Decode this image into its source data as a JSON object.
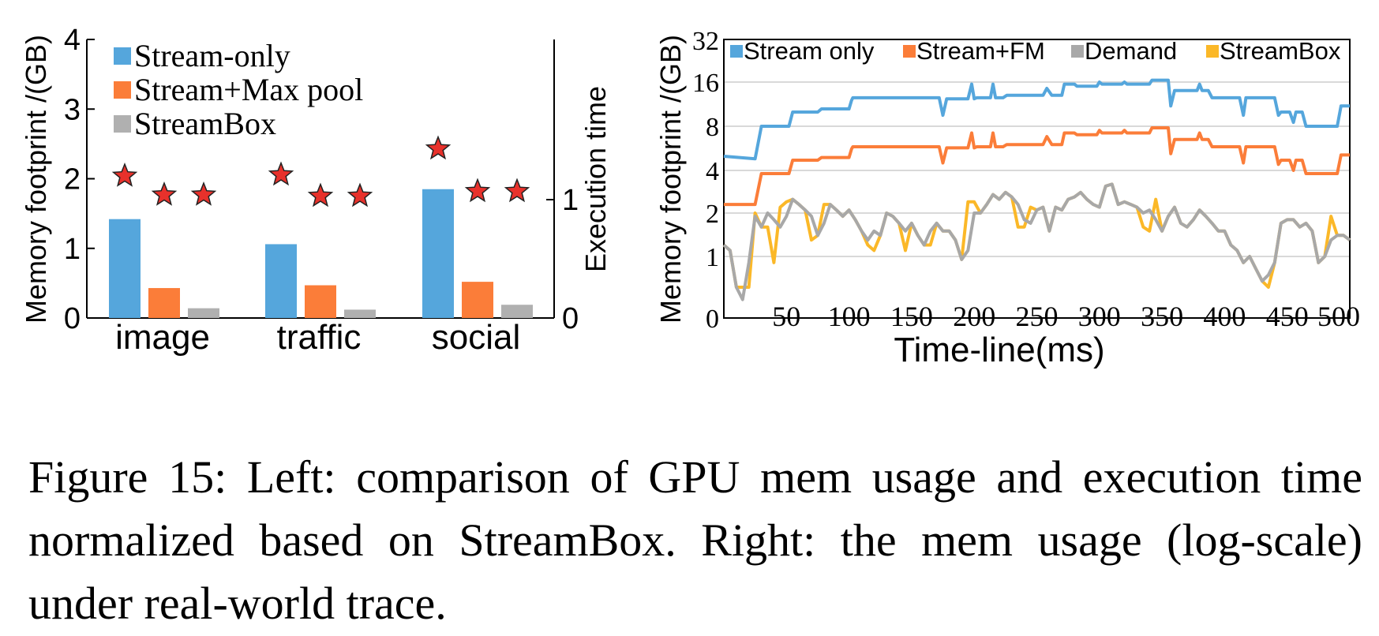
{
  "caption": "Figure 15: Left: comparison of GPU mem usage and execution time normalized based on StreamBox. Right: the mem usage (log-scale) under real-world trace.",
  "chart_data": [
    {
      "type": "bar",
      "categories": [
        "image",
        "traffic",
        "social"
      ],
      "ylabel": "Memory footprint /(GB)",
      "ylim": [
        0,
        4
      ],
      "yticks": [
        "0",
        "1",
        "2",
        "3",
        "4"
      ],
      "y2label": "Execution time",
      "y2ticks": [
        "0",
        "1"
      ],
      "legend_position": "top-left",
      "series": [
        {
          "name": "Stream-only",
          "color": "#55a6dc",
          "values": [
            1.42,
            1.06,
            1.85
          ]
        },
        {
          "name": "Stream+Max pool",
          "color": "#fb7d39",
          "values": [
            0.43,
            0.47,
            0.52
          ]
        },
        {
          "name": "StreamBox",
          "color": "#b0b0b0",
          "values": [
            0.14,
            0.12,
            0.19
          ]
        }
      ],
      "execution_time": [
        [
          1.2,
          1.04,
          1.04
        ],
        [
          1.21,
          1.03,
          1.03
        ],
        [
          1.43,
          1.07,
          1.07
        ]
      ]
    },
    {
      "type": "line",
      "xlabel": "Time-line(ms)",
      "ylabel": "Memory footprint /(GB)",
      "xlim": [
        0,
        500
      ],
      "xticks": [
        "50",
        "100",
        "150",
        "200",
        "250",
        "300",
        "350",
        "400",
        "450",
        "500"
      ],
      "yscale": "log2",
      "yticks": [
        "0",
        "1",
        "2",
        "4",
        "8",
        "16",
        "32"
      ],
      "grid": true,
      "legend_position": "top",
      "series": [
        {
          "name": "Stream only",
          "color": "#55a6dc",
          "x": [
            0,
            25,
            30,
            52,
            55,
            75,
            78,
            100,
            102,
            103,
            130,
            172,
            175,
            178,
            195,
            198,
            200,
            202,
            213,
            215,
            217,
            223,
            226,
            229,
            240,
            255,
            258,
            262,
            270,
            272,
            280,
            282,
            298,
            300,
            302,
            318,
            320,
            322,
            340,
            342,
            355,
            357,
            360,
            365,
            378,
            380,
            382,
            387,
            390,
            412,
            415,
            417,
            440,
            443,
            445,
            452,
            455,
            457,
            462,
            465,
            480,
            490,
            493,
            500
          ],
          "y": [
            5,
            4.8,
            8,
            8,
            10,
            10,
            10.5,
            10.5,
            12,
            12.5,
            12.5,
            12.5,
            9.5,
            12.3,
            12.3,
            15.5,
            12.3,
            12.5,
            12.5,
            15.5,
            12.5,
            12.5,
            13,
            13,
            13,
            13,
            14.5,
            13,
            13,
            15.5,
            15.5,
            15,
            15,
            16,
            15.5,
            15.5,
            16,
            15.5,
            15.5,
            16.5,
            16.5,
            11,
            14,
            14,
            14,
            15.5,
            14,
            14,
            12.5,
            12.5,
            9.5,
            12.5,
            12.5,
            9.5,
            10,
            10,
            8.5,
            10,
            10,
            8,
            8,
            8,
            11,
            11
          ]
        },
        {
          "name": "Stream+FM",
          "color": "#fb7d39",
          "x": [
            0,
            25,
            30,
            52,
            55,
            75,
            78,
            100,
            102,
            103,
            130,
            172,
            175,
            178,
            195,
            198,
            200,
            202,
            213,
            215,
            217,
            223,
            226,
            229,
            240,
            255,
            258,
            262,
            270,
            272,
            280,
            282,
            298,
            300,
            302,
            318,
            320,
            322,
            340,
            342,
            355,
            357,
            360,
            365,
            378,
            380,
            382,
            387,
            390,
            412,
            415,
            417,
            440,
            443,
            445,
            452,
            455,
            457,
            462,
            465,
            480,
            490,
            493,
            500
          ],
          "y": [
            2.3,
            2.3,
            3.8,
            3.8,
            4.7,
            4.7,
            4.9,
            4.9,
            5.6,
            5.8,
            5.8,
            5.8,
            4.5,
            5.7,
            5.7,
            7.2,
            5.7,
            5.8,
            5.8,
            7.2,
            5.8,
            5.8,
            6,
            6,
            6,
            6,
            6.8,
            6,
            6,
            7.2,
            7.2,
            7,
            7,
            7.5,
            7.2,
            7.2,
            7.5,
            7.2,
            7.2,
            7.8,
            7.8,
            5.2,
            6.5,
            6.5,
            6.5,
            7.2,
            6.5,
            6.5,
            5.8,
            5.8,
            4.5,
            5.8,
            5.8,
            4.4,
            4.7,
            4.7,
            4,
            4.7,
            4.7,
            3.8,
            3.8,
            3.8,
            5.1,
            5.1
          ]
        },
        {
          "name": "Demand",
          "color": "#a8a8a8",
          "x": [
            0,
            5,
            10,
            15,
            20,
            25,
            30,
            35,
            40,
            45,
            50,
            55,
            60,
            65,
            70,
            75,
            80,
            85,
            90,
            95,
            100,
            105,
            110,
            115,
            120,
            125,
            130,
            135,
            140,
            145,
            150,
            155,
            160,
            165,
            170,
            175,
            180,
            185,
            190,
            195,
            200,
            205,
            210,
            215,
            220,
            225,
            230,
            235,
            240,
            245,
            250,
            255,
            260,
            265,
            270,
            275,
            280,
            285,
            290,
            295,
            300,
            305,
            310,
            315,
            320,
            325,
            330,
            335,
            340,
            345,
            350,
            355,
            360,
            365,
            370,
            375,
            380,
            385,
            390,
            395,
            400,
            405,
            410,
            415,
            420,
            425,
            430,
            435,
            440,
            445,
            450,
            455,
            460,
            465,
            470,
            475,
            480,
            485,
            490,
            495,
            500
          ],
          "y": [
            1.2,
            1.1,
            0.5,
            0.3,
            0.9,
            1.9,
            1.6,
            2,
            1.8,
            1.6,
            1.9,
            2.5,
            2.3,
            2.1,
            1.9,
            1.4,
            1.7,
            2.3,
            2.1,
            1.9,
            2.1,
            1.8,
            1.5,
            1.3,
            1.5,
            1.4,
            2,
            1.9,
            1.7,
            1.5,
            1.7,
            1.4,
            1.2,
            1.5,
            1.7,
            1.5,
            1.5,
            1.3,
            0.95,
            1.1,
            2,
            2,
            2.3,
            2.7,
            2.5,
            2.8,
            2.6,
            2.3,
            1.8,
            1.7,
            2.1,
            2.2,
            1.5,
            2.2,
            2.1,
            2.5,
            2.6,
            2.8,
            2.5,
            2.3,
            2.2,
            3.1,
            3.2,
            2.3,
            2.4,
            2.3,
            2.2,
            2,
            2.1,
            1.8,
            1.5,
            1.9,
            2.2,
            1.7,
            1.6,
            1.8,
            2.1,
            1.9,
            1.7,
            1.5,
            1.5,
            1.2,
            1.1,
            0.9,
            1,
            0.8,
            0.6,
            0.7,
            0.9,
            1.7,
            1.8,
            1.8,
            1.6,
            1.7,
            1.5,
            0.9,
            1,
            1.3,
            1.4,
            1.4,
            1.3
          ]
        },
        {
          "name": "StreamBox",
          "color": "#fbb828",
          "x": [
            0,
            5,
            10,
            15,
            20,
            25,
            30,
            35,
            40,
            45,
            50,
            55,
            60,
            65,
            70,
            75,
            80,
            85,
            90,
            95,
            100,
            105,
            110,
            115,
            120,
            125,
            130,
            135,
            140,
            145,
            150,
            155,
            160,
            165,
            170,
            175,
            180,
            185,
            190,
            195,
            200,
            205,
            210,
            215,
            220,
            225,
            230,
            235,
            240,
            245,
            250,
            255,
            260,
            265,
            270,
            275,
            280,
            285,
            290,
            295,
            300,
            305,
            310,
            315,
            320,
            325,
            330,
            335,
            340,
            345,
            350,
            355,
            360,
            365,
            370,
            375,
            380,
            385,
            390,
            395,
            400,
            405,
            410,
            415,
            420,
            425,
            430,
            435,
            440,
            445,
            450,
            455,
            460,
            465,
            470,
            475,
            480,
            485,
            490,
            495,
            500
          ],
          "y": [
            1.2,
            1.1,
            0.5,
            0.5,
            0.5,
            2,
            1.6,
            1.6,
            0.9,
            2.2,
            2.4,
            2.5,
            2.3,
            2.1,
            1.3,
            1.4,
            2.3,
            2.3,
            2.1,
            1.9,
            2.1,
            1.8,
            1.5,
            1.2,
            1.1,
            1.4,
            2,
            1.9,
            1.7,
            1.1,
            1.7,
            1.4,
            1.2,
            1.2,
            1.7,
            1.5,
            1.5,
            1.3,
            0.95,
            2.4,
            2.4,
            2,
            2.3,
            2.7,
            2.5,
            2.8,
            2.6,
            1.6,
            1.6,
            2.2,
            2.1,
            2.2,
            1.5,
            2.2,
            2.1,
            2.5,
            2.6,
            2.8,
            2.5,
            2.3,
            2.2,
            3.1,
            3.2,
            2.3,
            2.4,
            2.3,
            2.2,
            1.6,
            1.5,
            2.5,
            1.5,
            1.9,
            2.2,
            1.7,
            1.6,
            1.8,
            2.1,
            1.9,
            1.7,
            1.5,
            1.5,
            1.2,
            1.1,
            0.9,
            1,
            0.8,
            0.6,
            0.5,
            0.9,
            1.7,
            1.8,
            1.8,
            1.6,
            1.7,
            1.5,
            0.9,
            1,
            1.9,
            1.4,
            1.4,
            1.3
          ]
        }
      ]
    }
  ]
}
